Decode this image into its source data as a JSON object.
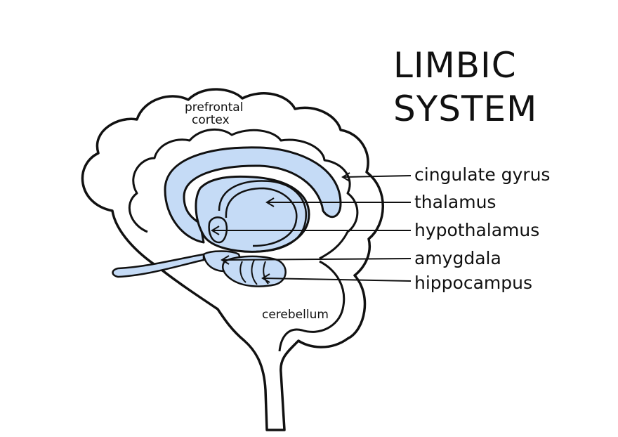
{
  "title": {
    "line1": "LIMBIC",
    "line2": "SYSTEM"
  },
  "regions": {
    "prefrontal_line1": "prefrontal",
    "prefrontal_line2": "cortex",
    "cerebellum": "cerebellum"
  },
  "structures": {
    "cingulate_gyrus": "cingulate gyrus",
    "thalamus": "thalamus",
    "hypothalamus": "hypothalamus",
    "amygdala": "amygdala",
    "hippocampus": "hippocampus"
  },
  "colors": {
    "limbic_fill": "#c5dbf6",
    "stroke": "#111111",
    "background": "#ffffff"
  }
}
